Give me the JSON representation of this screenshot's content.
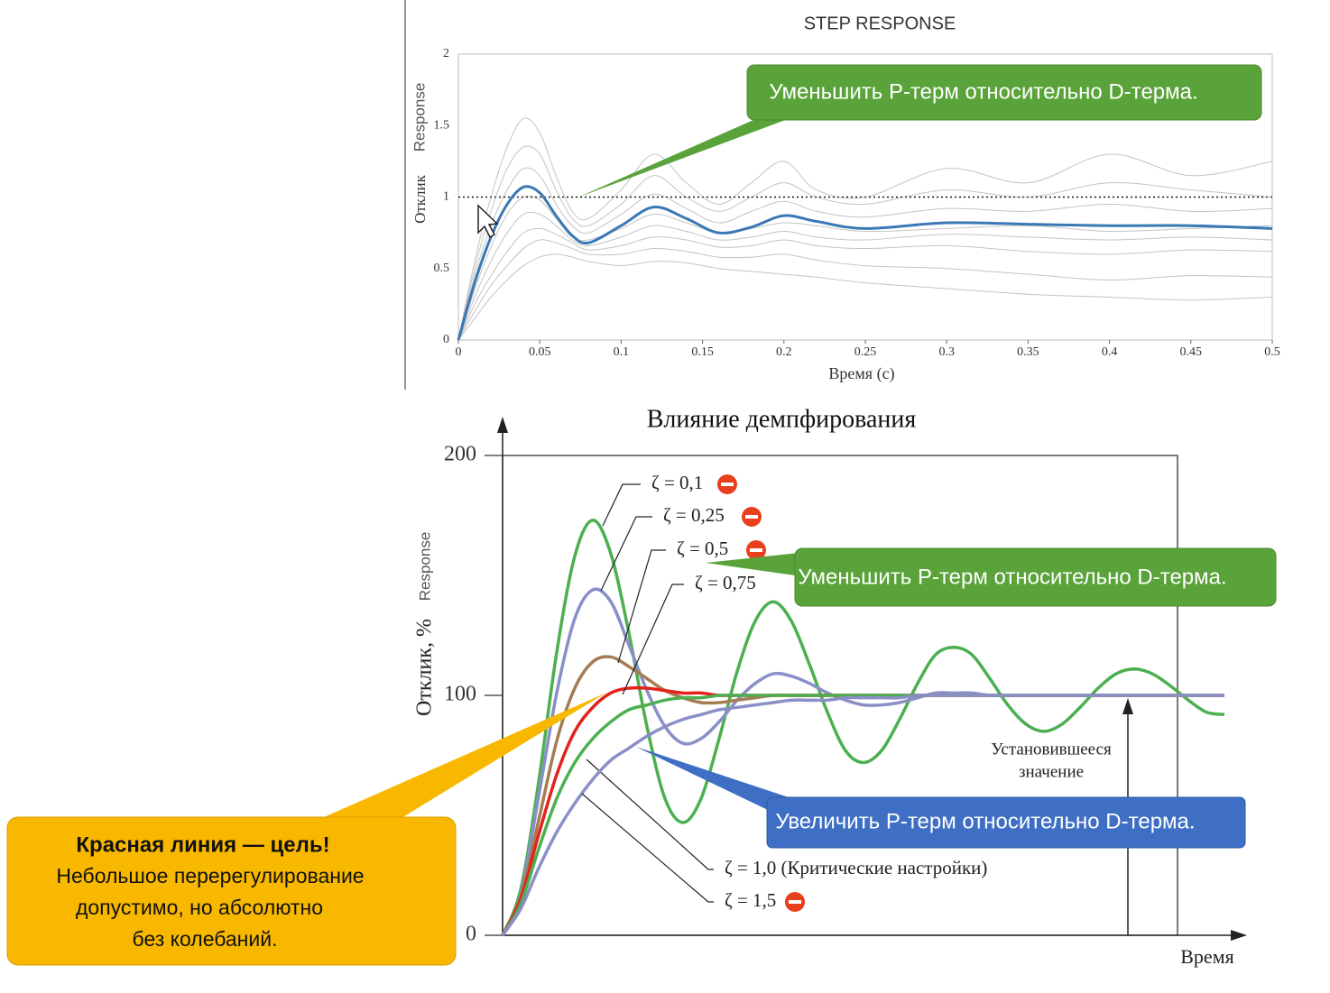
{
  "chart_data": [
    {
      "type": "line",
      "title": "STEP RESPONSE",
      "xlabel": "Время (с)",
      "ylabel": "Отклик",
      "ylabel_secondary": "Response",
      "x": [
        0,
        0.01,
        0.02,
        0.03,
        0.04,
        0.05,
        0.06,
        0.07,
        0.08,
        0.1,
        0.12,
        0.14,
        0.16,
        0.18,
        0.2,
        0.22,
        0.25,
        0.3,
        0.35,
        0.4,
        0.45,
        0.5
      ],
      "xlim": [
        0,
        0.5
      ],
      "xticks": [
        0,
        0.05,
        0.1,
        0.15,
        0.2,
        0.25,
        0.3,
        0.35,
        0.4,
        0.45,
        0.5
      ],
      "ylim": [
        0,
        2
      ],
      "yticks": [
        0,
        0.5,
        1,
        1.5,
        2
      ],
      "reference_line": 1,
      "series": [
        {
          "color": "#888888",
          "values": [
            0,
            0.55,
            1.0,
            1.35,
            1.55,
            1.45,
            1.15,
            0.9,
            0.85,
            1.05,
            1.3,
            1.1,
            0.95,
            1.1,
            1.25,
            1.05,
            1.0,
            1.2,
            1.1,
            1.3,
            1.15,
            1.25
          ]
        },
        {
          "color": "#888888",
          "values": [
            0,
            0.5,
            0.9,
            1.2,
            1.35,
            1.3,
            1.05,
            0.85,
            0.8,
            0.95,
            1.15,
            1.0,
            0.9,
            1.0,
            1.1,
            1.0,
            0.95,
            1.05,
            1.0,
            1.1,
            1.05,
            1.0
          ]
        },
        {
          "color": "#888888",
          "values": [
            0,
            0.45,
            0.8,
            1.05,
            1.2,
            1.15,
            0.95,
            0.8,
            0.75,
            0.88,
            1.02,
            0.92,
            0.82,
            0.9,
            0.97,
            0.9,
            0.86,
            0.92,
            0.9,
            0.95,
            0.9,
            0.92
          ]
        },
        {
          "color": "#888888",
          "values": [
            0,
            0.35,
            0.65,
            0.88,
            1.0,
            0.98,
            0.85,
            0.72,
            0.7,
            0.78,
            0.88,
            0.82,
            0.75,
            0.78,
            0.82,
            0.8,
            0.76,
            0.78,
            0.8,
            0.76,
            0.78,
            0.8
          ]
        },
        {
          "color": "#888888",
          "values": [
            0,
            0.3,
            0.55,
            0.75,
            0.88,
            0.88,
            0.8,
            0.7,
            0.66,
            0.72,
            0.8,
            0.76,
            0.7,
            0.72,
            0.76,
            0.72,
            0.7,
            0.74,
            0.72,
            0.7,
            0.72,
            0.7
          ]
        },
        {
          "color": "#888888",
          "values": [
            0,
            0.25,
            0.45,
            0.62,
            0.75,
            0.78,
            0.74,
            0.68,
            0.63,
            0.66,
            0.72,
            0.7,
            0.65,
            0.66,
            0.7,
            0.66,
            0.64,
            0.66,
            0.62,
            0.6,
            0.63,
            0.62
          ]
        },
        {
          "color": "#888888",
          "values": [
            0,
            0.2,
            0.38,
            0.52,
            0.64,
            0.7,
            0.68,
            0.64,
            0.6,
            0.6,
            0.64,
            0.62,
            0.58,
            0.58,
            0.6,
            0.56,
            0.52,
            0.5,
            0.46,
            0.42,
            0.45,
            0.44
          ]
        },
        {
          "color": "#888888",
          "values": [
            0,
            0.15,
            0.3,
            0.42,
            0.52,
            0.58,
            0.6,
            0.58,
            0.55,
            0.52,
            0.55,
            0.54,
            0.5,
            0.48,
            0.46,
            0.44,
            0.4,
            0.36,
            0.32,
            0.3,
            0.28,
            0.3
          ]
        },
        {
          "color": "#3a78b5",
          "values": [
            0,
            0.4,
            0.72,
            0.95,
            1.07,
            1.03,
            0.87,
            0.73,
            0.68,
            0.8,
            0.93,
            0.85,
            0.75,
            0.79,
            0.87,
            0.83,
            0.78,
            0.82,
            0.81,
            0.8,
            0.8,
            0.78
          ]
        }
      ],
      "annotations": [
        "Уменьшить P-терм относительно D-терма."
      ]
    },
    {
      "type": "line",
      "title": "Влияние демпфирования",
      "xlabel": "Время",
      "ylabel": "Отклик, %",
      "ylabel_secondary": "Response",
      "x": [
        0,
        0.25,
        0.5,
        0.75,
        1,
        1.25,
        1.5,
        1.75,
        2,
        2.25,
        2.5,
        2.75,
        3,
        3.25,
        3.5,
        3.75,
        4,
        4.25,
        4.5,
        4.75,
        5,
        5.25,
        5.5,
        5.75,
        6,
        6.25,
        6.5,
        6.75,
        7,
        7.25,
        7.5,
        7.75,
        8,
        8.25,
        8.5,
        8.75,
        9,
        9.25,
        9.5,
        9.75,
        10
      ],
      "xlim": [
        0,
        10
      ],
      "ylim": [
        0,
        200
      ],
      "yticks": [
        0,
        100,
        200
      ],
      "series": [
        {
          "name": "ζ = 0,1",
          "color": "#4caf50",
          "values": [
            0,
            19,
            64,
            118,
            158,
            173,
            159,
            126,
            87,
            57,
            47,
            57,
            82,
            110,
            131,
            139,
            131,
            113,
            93,
            77,
            72,
            77,
            90,
            105,
            117,
            120,
            117,
            107,
            96,
            88,
            85,
            88,
            95,
            103,
            109,
            111,
            109,
            104,
            98,
            93,
            92
          ]
        },
        {
          "name": "ζ = 0,25",
          "color": "#8a8fc8",
          "values": [
            0,
            17,
            58,
            101,
            132,
            144,
            139,
            121,
            102,
            87,
            80,
            82,
            89,
            98,
            105,
            109,
            108,
            105,
            101,
            98,
            96,
            96,
            97,
            99,
            101,
            101,
            101,
            100,
            100,
            100,
            100,
            100,
            100,
            100,
            100,
            100,
            100,
            100,
            100,
            100,
            100
          ]
        },
        {
          "name": "ζ = 0,5",
          "color": "#a67c52",
          "values": [
            0,
            16,
            48,
            81,
            103,
            114,
            116,
            112,
            107,
            102,
            99,
            97,
            97,
            98,
            99,
            100,
            100,
            100,
            100,
            100,
            100,
            100,
            100,
            100,
            100,
            100,
            100,
            100,
            100,
            100,
            100,
            100,
            100,
            100,
            100,
            100,
            100,
            100,
            100,
            100,
            100
          ]
        },
        {
          "name": "ζ = 0,75",
          "color": "#e3231b",
          "values": [
            0,
            15,
            42,
            67,
            85,
            95,
            101,
            103,
            103,
            102,
            101,
            101,
            100,
            100,
            100,
            100,
            100,
            100,
            100,
            100,
            100,
            100,
            100,
            100,
            100,
            100,
            100,
            100,
            100,
            100,
            100,
            100,
            100,
            100,
            100,
            100,
            100,
            100,
            100,
            100,
            100
          ]
        },
        {
          "name": "ζ = 1,0 (Критические настройки)",
          "color": "#4caf50",
          "values": [
            0,
            13,
            36,
            57,
            72,
            82,
            89,
            94,
            96,
            98,
            99,
            99,
            100,
            100,
            100,
            100,
            100,
            100,
            100,
            100,
            100,
            100,
            100,
            100,
            100,
            100,
            100,
            100,
            100,
            100,
            100,
            100,
            100,
            100,
            100,
            100,
            100,
            100,
            100,
            100,
            100
          ]
        },
        {
          "name": "ζ = 1,5",
          "color": "#8a8fc8",
          "values": [
            0,
            11,
            28,
            43,
            55,
            65,
            73,
            78,
            83,
            87,
            90,
            92,
            94,
            95,
            96,
            97,
            98,
            98,
            98,
            99,
            99,
            99,
            99,
            100,
            100,
            100,
            100,
            100,
            100,
            100,
            100,
            100,
            100,
            100,
            100,
            100,
            100,
            100,
            100,
            100,
            100
          ]
        }
      ],
      "annotations": [
        "Уменьшить P-терм относительно D-терма.",
        "Увеличить P-терм относительно D-терма.",
        "Установившееся",
        "значение"
      ],
      "callout": {
        "title": "Красная линия — цель!",
        "lines": [
          "Небольшое перерегулирование",
          "допустимо, но абсолютно",
          "без колебаний."
        ]
      }
    }
  ]
}
